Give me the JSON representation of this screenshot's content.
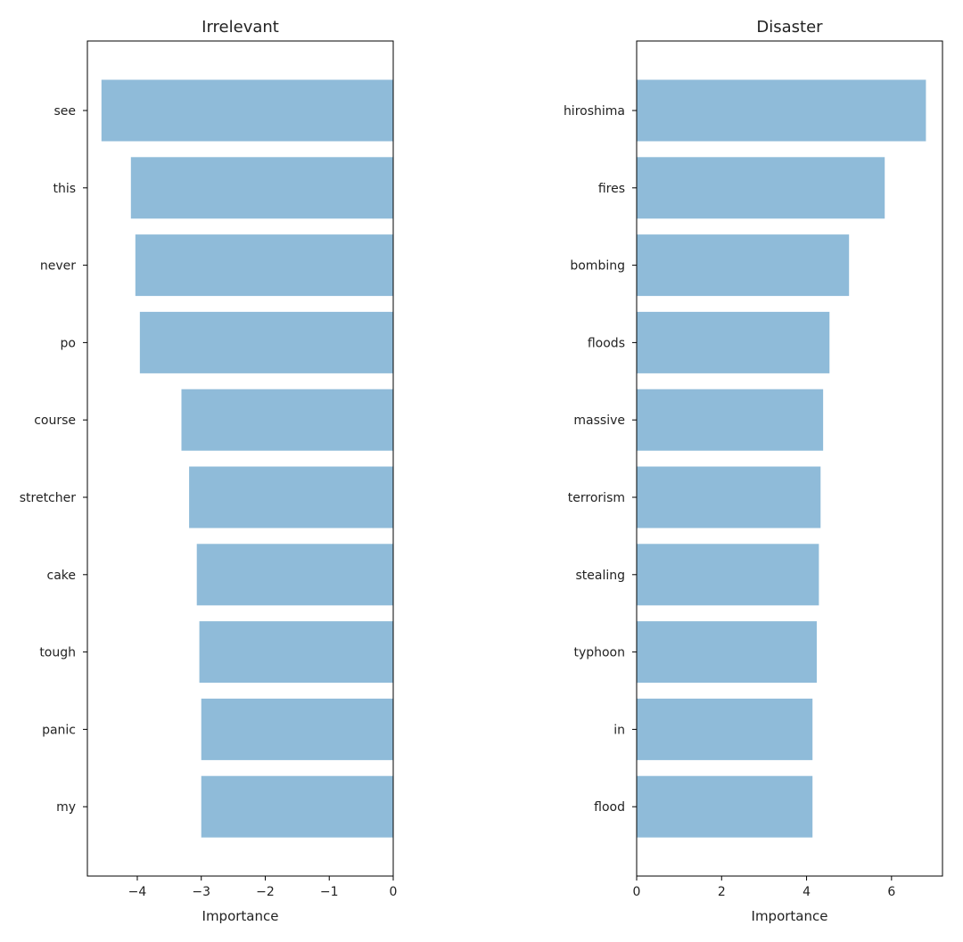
{
  "chart_data": [
    {
      "type": "bar",
      "orientation": "horizontal",
      "title": "Irrelevant",
      "xlabel": "Importance",
      "ylabel": "",
      "categories": [
        "see",
        "this",
        "never",
        "po",
        "course",
        "stretcher",
        "cake",
        "tough",
        "panic",
        "my"
      ],
      "values": [
        -4.56,
        -4.1,
        -4.03,
        -3.96,
        -3.31,
        -3.19,
        -3.07,
        -3.03,
        -3.0,
        -3.0
      ],
      "xlim": [
        -4.78,
        0
      ],
      "xticks": [
        -4,
        -3,
        -2,
        -1,
        0
      ],
      "xtick_labels": [
        "−4",
        "−3",
        "−2",
        "−1",
        "0"
      ],
      "grid": false,
      "color": "#8fbbd9"
    },
    {
      "type": "bar",
      "orientation": "horizontal",
      "title": "Disaster",
      "xlabel": "Importance",
      "ylabel": "",
      "categories": [
        "hiroshima",
        "fires",
        "bombing",
        "floods",
        "massive",
        "terrorism",
        "stealing",
        "typhoon",
        "in",
        "flood"
      ],
      "values": [
        6.81,
        5.84,
        5.0,
        4.54,
        4.39,
        4.33,
        4.29,
        4.24,
        4.14,
        4.14
      ],
      "xlim": [
        0,
        7.2
      ],
      "xticks": [
        0,
        2,
        4,
        6
      ],
      "xtick_labels": [
        "0",
        "2",
        "4",
        "6"
      ],
      "grid": false,
      "color": "#8fbbd9"
    }
  ]
}
